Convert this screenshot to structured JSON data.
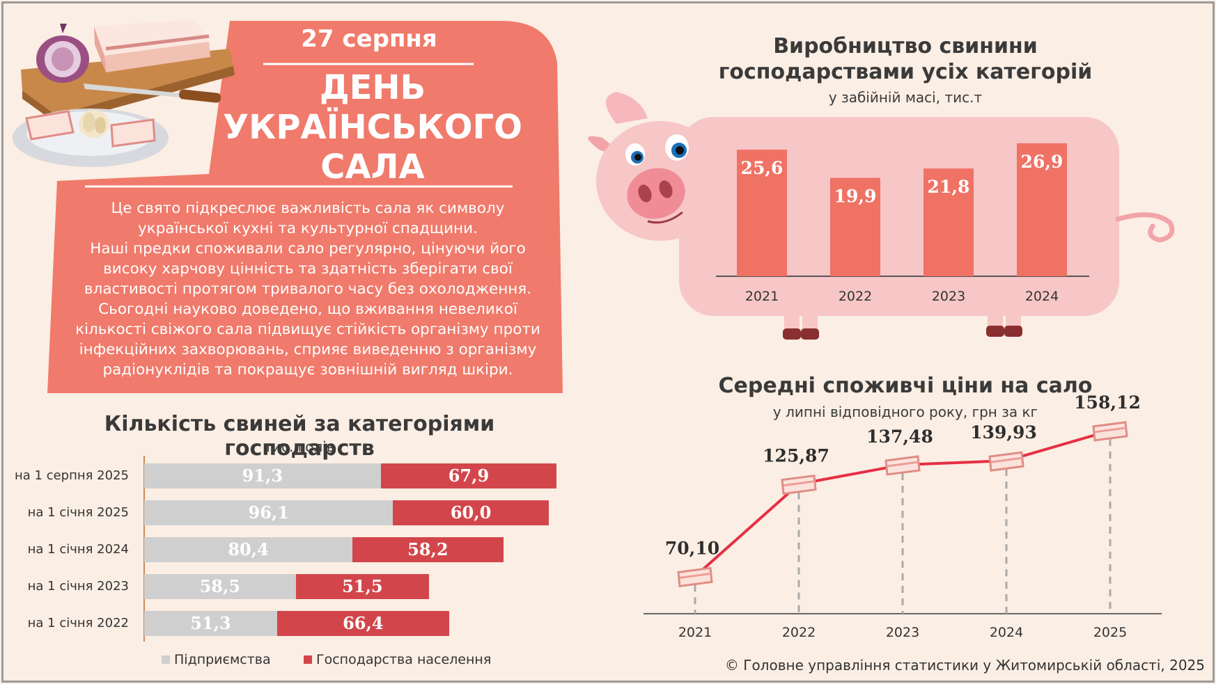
{
  "hero": {
    "date": "27 серпня",
    "title_line1": "ДЕНЬ",
    "title_line2": "УКРАЇНСЬКОГО",
    "title_line3": "САЛА",
    "body": [
      "Це свято підкреслює важливість сала як символу",
      "української кухні та культурної спадщини.",
      "Наші предки споживали сало регулярно, цінуючи його",
      "високу харчову цінність та здатність зберігати свої",
      "властивості протягом тривалого часу без охолодження.",
      "Сьогодні науково доведено, що вживання невеликої",
      "кількості свіжого сала підвищує стійкість організму проти",
      "інфекційних захворювань, сприяє виведенню з організму",
      "радіонуклідів та покращує зовнішній вигляд шкіри."
    ]
  },
  "colors": {
    "hero_bg": "#f07a6b",
    "bar": "#ef7265",
    "pig_body": "#f7c6c6",
    "gray_bar": "#cfcfcf",
    "red_bar": "#d2464b",
    "line": "#e52f44"
  },
  "chart_data": [
    {
      "type": "bar",
      "title": "Виробництво свинини господарствами усіх категорій",
      "subtitle": "у забійній масі, тис.т",
      "categories": [
        "2021",
        "2022",
        "2023",
        "2024"
      ],
      "values": [
        25.6,
        19.9,
        21.8,
        26.9
      ],
      "value_labels": [
        "25,6",
        "19,9",
        "21,8",
        "26,9"
      ],
      "ylim": [
        0,
        29
      ],
      "grid": false
    },
    {
      "type": "line",
      "title": "Середні споживчі ціни на сало",
      "subtitle": "у липні відповідного року, грн за кг",
      "x": [
        "2021",
        "2022",
        "2023",
        "2024",
        "2025"
      ],
      "values": [
        70.1,
        125.87,
        137.48,
        139.93,
        158.12
      ],
      "value_labels": [
        "70,10",
        "125,87",
        "137,48",
        "139,93",
        "158,12"
      ],
      "ylim": [
        40,
        170
      ],
      "marker_icon": "salo-slice-icon",
      "grid": false
    },
    {
      "type": "bar",
      "orientation": "horizontal",
      "stacked": true,
      "title": "Кількість свиней за категоріями господарств",
      "subtitle": "тис. голів",
      "categories": [
        "на 1 серпня 2025",
        "на 1 січня 2025",
        "на 1 січня 2024",
        "на 1 січня 2023",
        "на 1 січня 2022"
      ],
      "series": [
        {
          "name": "Підприємства",
          "values": [
            91.3,
            96.1,
            80.4,
            58.5,
            51.3
          ],
          "value_labels": [
            "91,3",
            "96,1",
            "80,4",
            "58,5",
            "51,3"
          ]
        },
        {
          "name": "Господарства населення",
          "values": [
            67.9,
            60.0,
            58.2,
            51.5,
            66.4
          ],
          "value_labels": [
            "67,9",
            "60,0",
            "58,2",
            "51,5",
            "66,4"
          ]
        }
      ],
      "legend": "bottom"
    }
  ],
  "footer": "© Головне управління статистики у Житомирській області, 2025"
}
